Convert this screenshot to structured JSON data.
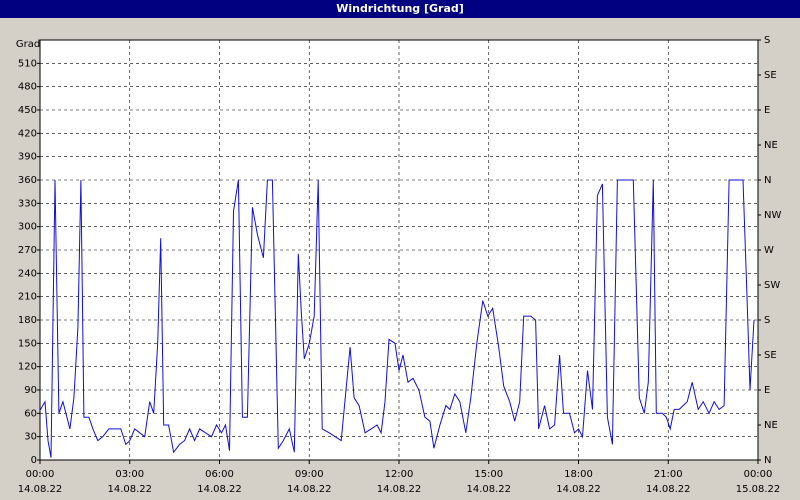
{
  "chart_data": {
    "type": "line",
    "title": "Windrichtung [Grad]",
    "ylabel": "Grad",
    "xlim": [
      0,
      1440
    ],
    "xticks": [
      {
        "value": 0,
        "label": "00:00"
      },
      {
        "value": 180,
        "label": "03:00"
      },
      {
        "value": 360,
        "label": "06:00"
      },
      {
        "value": 540,
        "label": "09:00"
      },
      {
        "value": 720,
        "label": "12:00"
      },
      {
        "value": 900,
        "label": "15:00"
      },
      {
        "value": 1080,
        "label": "18:00"
      },
      {
        "value": 1260,
        "label": "21:00"
      },
      {
        "value": 1440,
        "label": "00:00"
      }
    ],
    "xtick_dates": [
      "14.08.22",
      "14.08.22",
      "14.08.22",
      "14.08.22",
      "14.08.22",
      "14.08.22",
      "14.08.22",
      "14.08.22",
      "15.08.22"
    ],
    "ylim": [
      0,
      540
    ],
    "yticks": [
      0,
      30,
      60,
      90,
      120,
      150,
      180,
      210,
      240,
      270,
      300,
      330,
      360,
      390,
      420,
      450,
      480,
      510
    ],
    "y2lim": [
      0,
      540
    ],
    "y2ticks": [
      {
        "value": 0,
        "label": "N"
      },
      {
        "value": 45,
        "label": "NE"
      },
      {
        "value": 90,
        "label": "E"
      },
      {
        "value": 135,
        "label": "SE"
      },
      {
        "value": 180,
        "label": "S"
      },
      {
        "value": 225,
        "label": "SW"
      },
      {
        "value": 270,
        "label": "W"
      },
      {
        "value": 315,
        "label": "NW"
      },
      {
        "value": 360,
        "label": "N"
      },
      {
        "value": 405,
        "label": "NE"
      },
      {
        "value": 450,
        "label": "E"
      },
      {
        "value": 495,
        "label": "SE"
      },
      {
        "value": 540,
        "label": "S"
      }
    ],
    "grid": true,
    "series": [
      {
        "color": "#1010d8",
        "x": [
          0,
          10,
          16,
          22,
          30,
          38,
          46,
          52,
          60,
          68,
          76,
          82,
          88,
          98,
          106,
          116,
          126,
          138,
          150,
          162,
          172,
          180,
          190,
          200,
          210,
          220,
          228,
          236,
          242,
          248,
          258,
          268,
          280,
          290,
          300,
          310,
          320,
          332,
          344,
          354,
          364,
          372,
          380,
          388,
          398,
          406,
          416,
          426,
          436,
          448,
          456,
          466,
          478,
          488,
          500,
          510,
          518,
          524,
          530,
          540,
          550,
          558,
          566,
          580,
          592,
          604,
          616,
          622,
          630,
          640,
          652,
          664,
          676,
          684,
          692,
          700,
          712,
          720,
          728,
          738,
          748,
          760,
          772,
          782,
          790,
          802,
          814,
          822,
          832,
          842,
          854,
          864,
          876,
          888,
          898,
          908,
          920,
          930,
          942,
          952,
          962,
          970,
          984,
          994,
          1000,
          1012,
          1022,
          1032,
          1042,
          1050,
          1062,
          1072,
          1080,
          1088,
          1098,
          1108,
          1118,
          1128,
          1138,
          1148,
          1158,
          1168,
          1178,
          1190,
          1202,
          1212,
          1220,
          1230,
          1236,
          1248,
          1256,
          1264,
          1272,
          1282,
          1298,
          1308,
          1320,
          1330,
          1342,
          1352,
          1362,
          1372,
          1382,
          1392,
          1404,
          1410,
          1418,
          1424,
          1432
        ],
        "values": [
          64,
          75,
          25,
          3,
          360,
          60,
          75,
          60,
          40,
          80,
          170,
          360,
          55,
          55,
          40,
          25,
          30,
          40,
          40,
          40,
          20,
          25,
          40,
          35,
          30,
          75,
          60,
          150,
          285,
          45,
          45,
          10,
          20,
          25,
          40,
          25,
          40,
          35,
          30,
          45,
          35,
          45,
          12,
          320,
          360,
          55,
          55,
          325,
          290,
          260,
          360,
          360,
          15,
          25,
          40,
          10,
          265,
          190,
          130,
          150,
          185,
          360,
          40,
          35,
          30,
          25,
          105,
          145,
          80,
          70,
          35,
          40,
          45,
          35,
          75,
          155,
          150,
          115,
          135,
          100,
          105,
          90,
          55,
          50,
          15,
          45,
          70,
          65,
          85,
          75,
          35,
          80,
          150,
          205,
          185,
          195,
          145,
          95,
          75,
          50,
          75,
          185,
          185,
          180,
          40,
          70,
          40,
          45,
          135,
          60,
          60,
          35,
          40,
          30,
          115,
          65,
          340,
          355,
          55,
          20,
          360,
          360,
          360,
          360,
          80,
          60,
          100,
          360,
          60,
          60,
          55,
          40,
          65,
          65,
          75,
          100,
          65,
          75,
          60,
          75,
          65,
          70,
          360,
          360,
          360,
          360,
          210,
          90,
          180
        ]
      }
    ]
  }
}
